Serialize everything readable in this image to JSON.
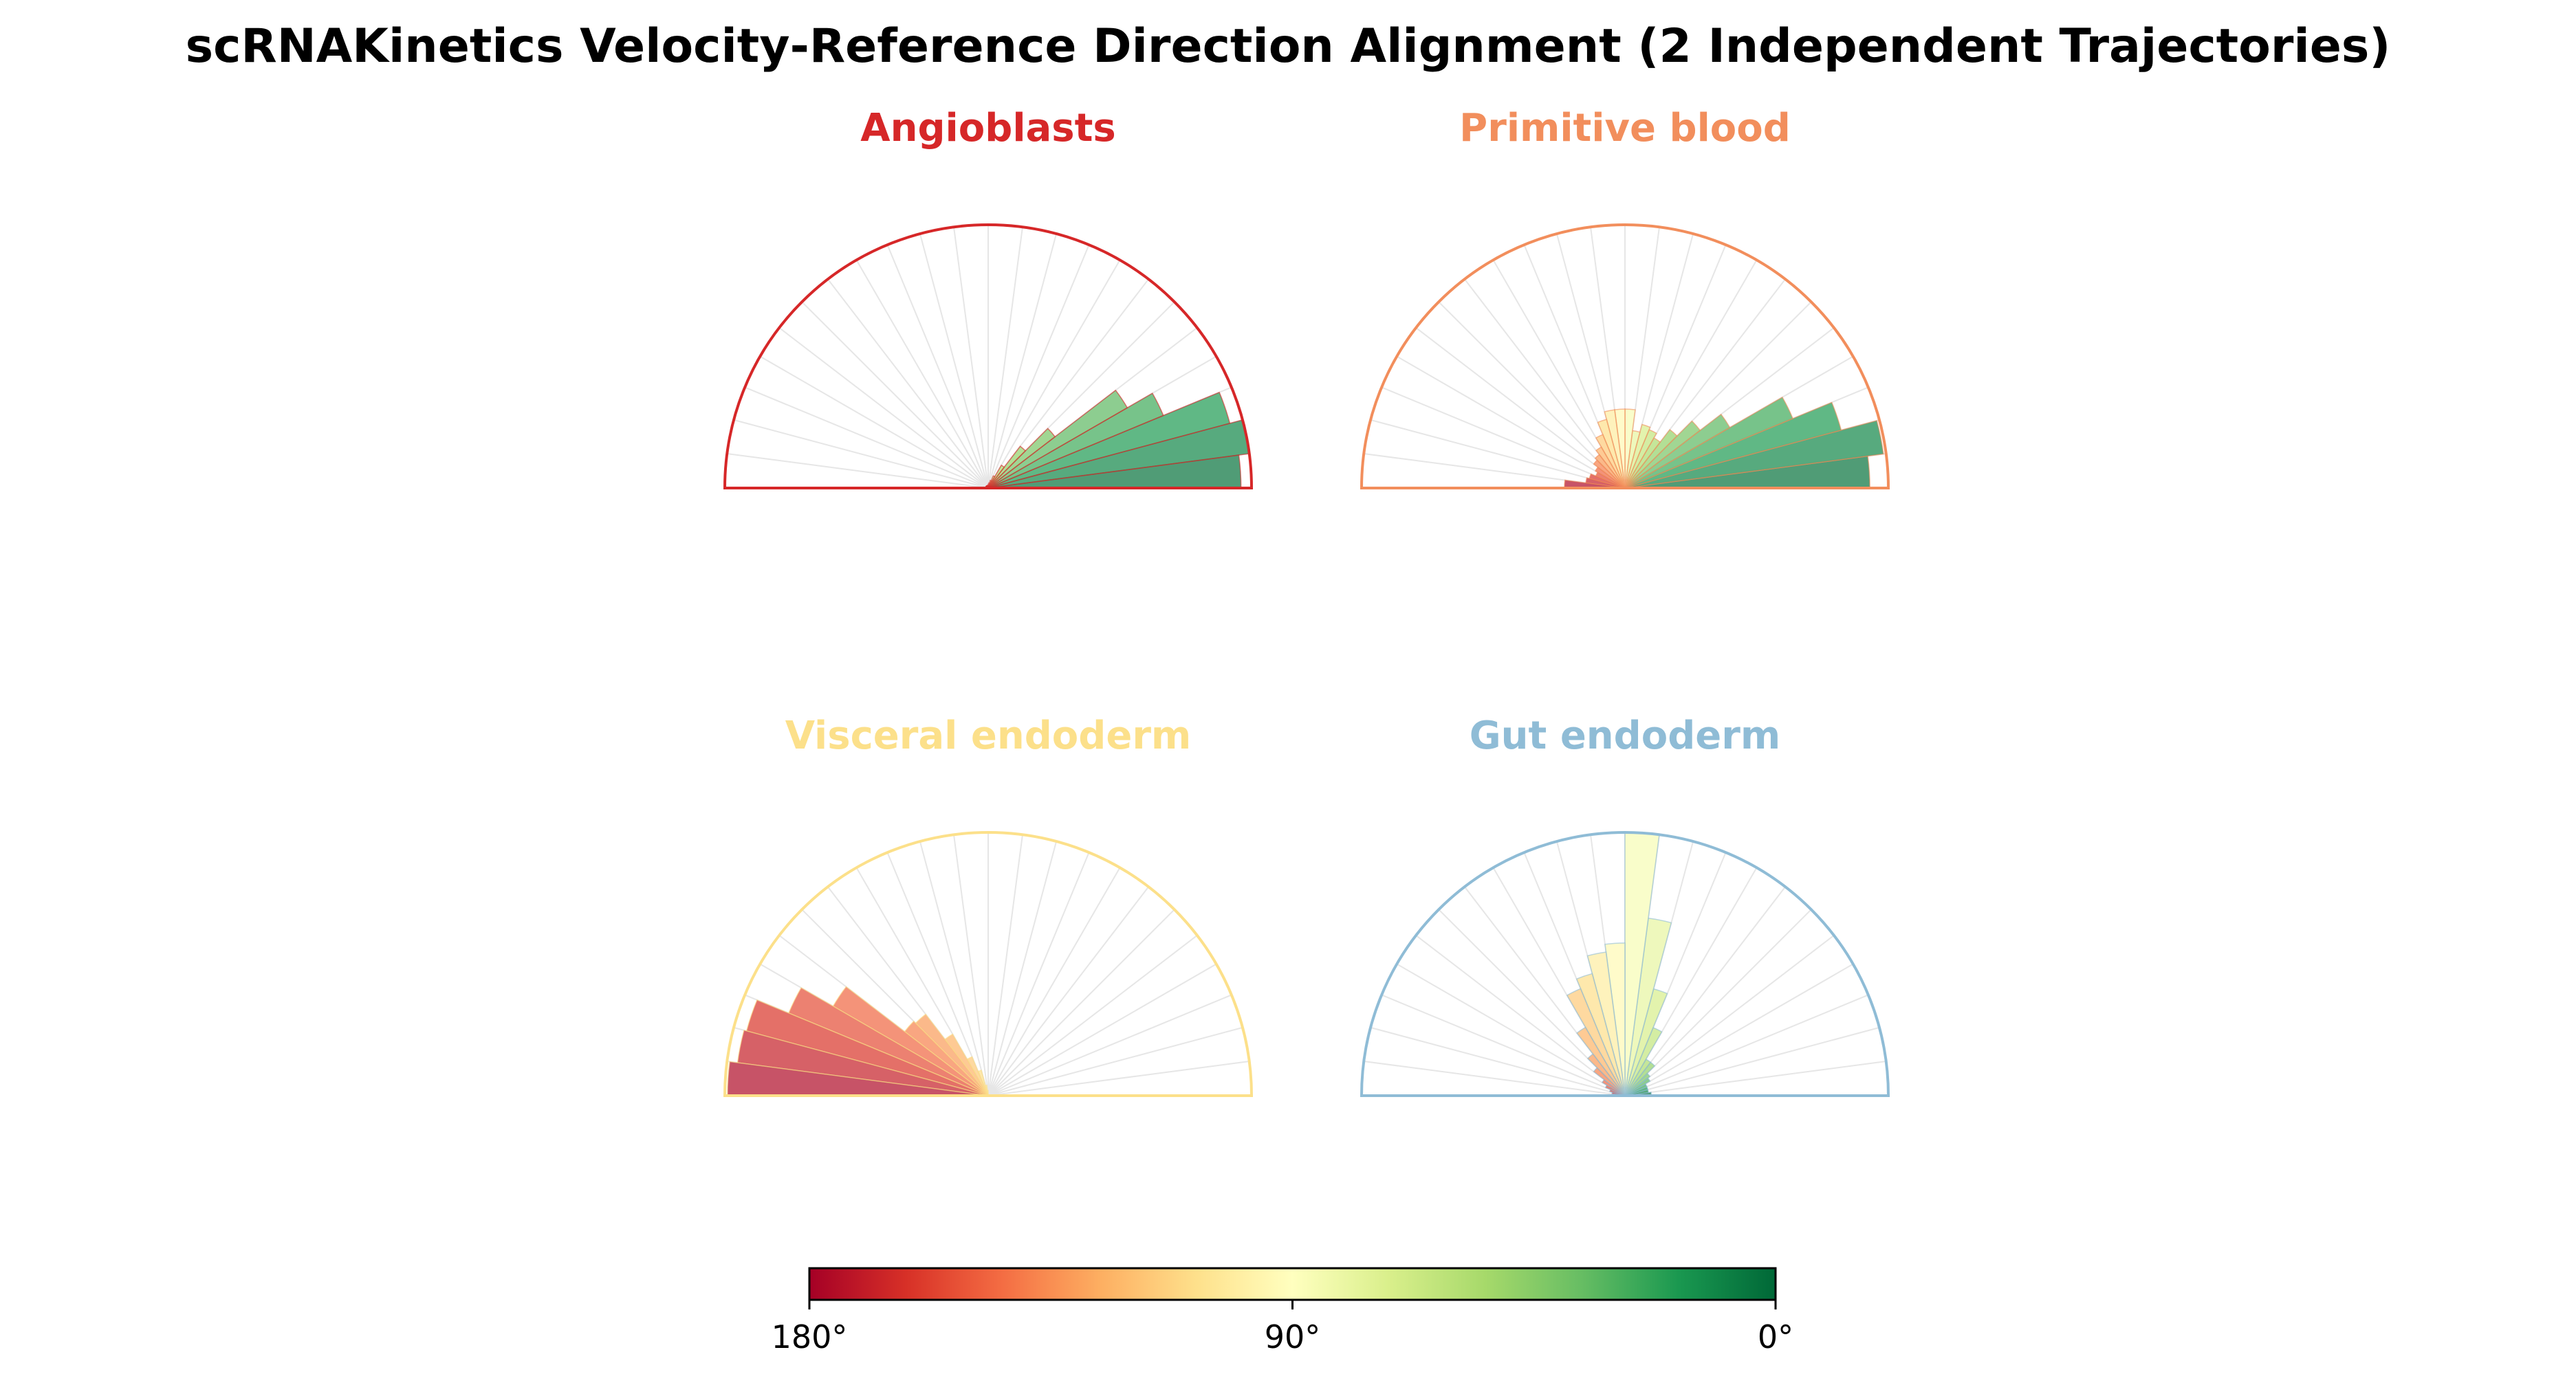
{
  "chart_data": {
    "type": "polar-bar",
    "title": "scRNAKinetics Velocity-Reference Direction Alignment (2 Independent Trajectories)",
    "angle_range": [
      0,
      180
    ],
    "bin_width_deg": 7.5,
    "bin_centers_deg": [
      3.75,
      11.25,
      18.75,
      26.25,
      33.75,
      41.25,
      48.75,
      56.25,
      63.75,
      71.25,
      78.75,
      86.25,
      93.75,
      101.25,
      108.75,
      116.25,
      123.75,
      131.25,
      138.75,
      146.25,
      153.75,
      161.25,
      168.75,
      176.25
    ],
    "grid": true,
    "colormap": {
      "name": "RdYlGn",
      "stops": [
        "#a50026",
        "#d73027",
        "#f46d43",
        "#fdae61",
        "#fee08b",
        "#ffffbf",
        "#d9ef8b",
        "#a6d96a",
        "#66bd63",
        "#1a9850",
        "#006837"
      ],
      "ticks": [
        {
          "label": "180°",
          "value": 180
        },
        {
          "label": "90°",
          "value": 90
        },
        {
          "label": "0°",
          "value": 0
        }
      ]
    },
    "panels": [
      {
        "name": "Angioblasts",
        "color": "#d62728",
        "values": [
          0.96,
          1.0,
          0.95,
          0.72,
          0.61,
          0.32,
          0.2,
          0.1,
          0.05,
          0.03,
          0.02,
          0.015,
          0.01,
          0.01,
          0.01,
          0.01,
          0.01,
          0.01,
          0.01,
          0.01,
          0.01,
          0.01,
          0.01,
          0.01
        ]
      },
      {
        "name": "Primitive blood",
        "color": "#f28e5c",
        "values": [
          0.93,
          0.99,
          0.85,
          0.69,
          0.46,
          0.36,
          0.28,
          0.22,
          0.24,
          0.25,
          0.22,
          0.3,
          0.3,
          0.3,
          0.27,
          0.22,
          0.18,
          0.16,
          0.15,
          0.13,
          0.12,
          0.14,
          0.15,
          0.23
        ]
      },
      {
        "name": "Visceral endoderm",
        "color": "#fce08a",
        "values": [
          0.0,
          0.0,
          0.0,
          0.0,
          0.0,
          0.0,
          0.0,
          0.0,
          0.0,
          0.0,
          0.0,
          0.0,
          0.02,
          0.04,
          0.1,
          0.16,
          0.27,
          0.39,
          0.4,
          0.68,
          0.82,
          0.95,
          0.96,
          0.99
        ]
      },
      {
        "name": "Gut endoderm",
        "color": "#8fbcd6",
        "values": [
          0.1,
          0.09,
          0.09,
          0.09,
          0.11,
          0.12,
          0.16,
          0.16,
          0.28,
          0.42,
          0.68,
          1.0,
          0.58,
          0.55,
          0.48,
          0.44,
          0.3,
          0.2,
          0.15,
          0.1,
          0.08,
          0.06,
          0.05,
          0.04
        ]
      }
    ]
  }
}
